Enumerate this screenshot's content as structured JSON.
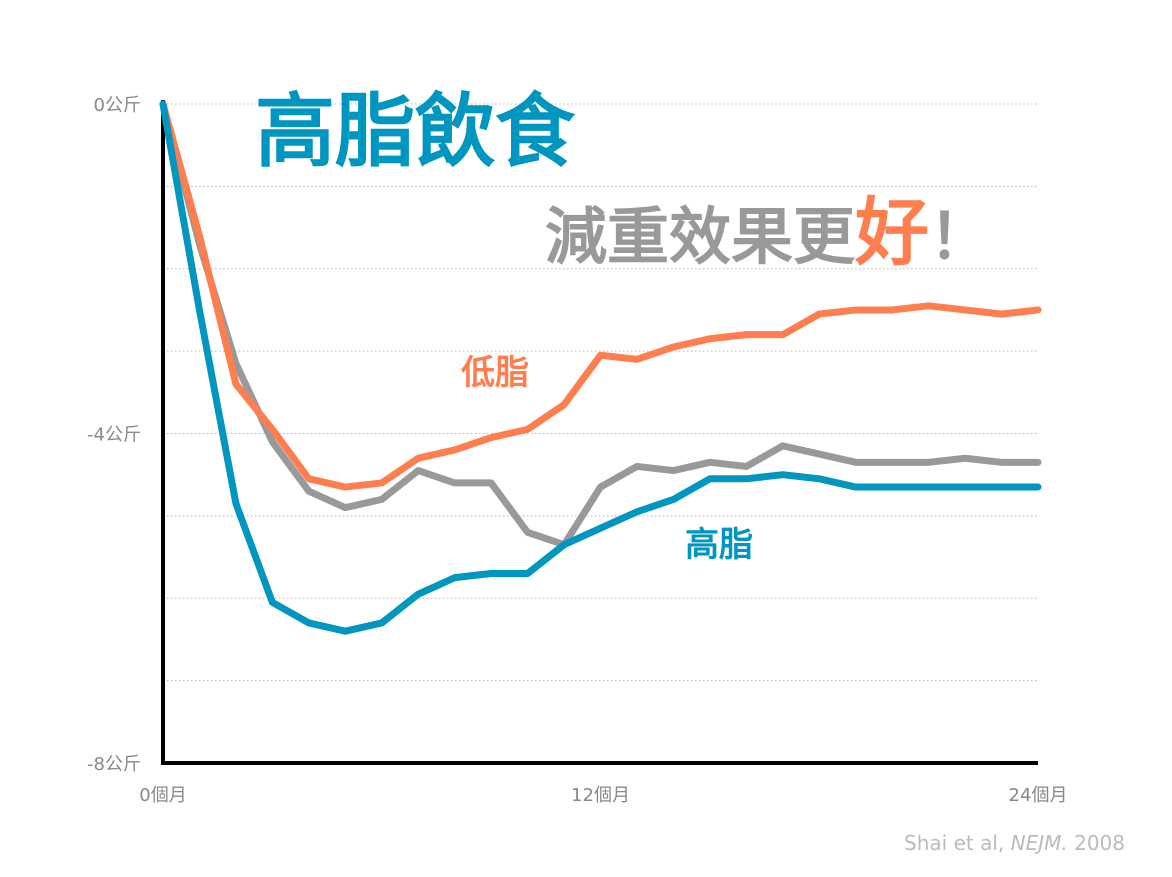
{
  "chart_data": {
    "type": "line",
    "yticks": [
      "0公斤",
      "-4公斤",
      "-8公斤"
    ],
    "ytick_values": [
      0,
      -4,
      -8
    ],
    "xticks": [
      "0個月",
      "12個月",
      "24個月"
    ],
    "xtick_values": [
      0,
      12,
      24
    ],
    "xlim": [
      0,
      24
    ],
    "ylim": [
      -8,
      0
    ],
    "grid": true,
    "series": [
      {
        "name": "低脂",
        "color": "#FF7E4F",
        "x": [
          0,
          1,
          2,
          3,
          4,
          5,
          6,
          7,
          8,
          9,
          10,
          11,
          12,
          13,
          14,
          15,
          16,
          17,
          18,
          19,
          20,
          21,
          22,
          23,
          24
        ],
        "values": [
          0,
          -1.6,
          -3.4,
          -3.95,
          -4.55,
          -4.65,
          -4.6,
          -4.3,
          -4.2,
          -4.05,
          -3.95,
          -3.65,
          -3.05,
          -3.1,
          -2.95,
          -2.85,
          -2.8,
          -2.8,
          -2.55,
          -2.5,
          -2.5,
          -2.45,
          -2.5,
          -2.55,
          -2.5
        ]
      },
      {
        "name": "",
        "color": "#999999",
        "x": [
          0,
          1,
          2,
          3,
          4,
          5,
          6,
          7,
          8,
          9,
          10,
          11,
          12,
          13,
          14,
          15,
          16,
          17,
          18,
          19,
          20,
          21,
          22,
          23,
          24
        ],
        "values": [
          0,
          -1.7,
          -3.15,
          -4.1,
          -4.7,
          -4.9,
          -4.8,
          -4.45,
          -4.6,
          -4.6,
          -5.2,
          -5.35,
          -4.65,
          -4.4,
          -4.45,
          -4.35,
          -4.4,
          -4.15,
          -4.25,
          -4.35,
          -4.35,
          -4.35,
          -4.3,
          -4.35,
          -4.35
        ]
      },
      {
        "name": "高脂",
        "color": "#0096BF",
        "x": [
          0,
          1,
          2,
          3,
          4,
          5,
          6,
          7,
          8,
          9,
          10,
          11,
          12,
          13,
          14,
          15,
          16,
          17,
          18,
          19,
          20,
          21,
          22,
          23,
          24
        ],
        "values": [
          0,
          -2.5,
          -4.85,
          -6.05,
          -6.3,
          -6.4,
          -6.3,
          -5.95,
          -5.75,
          -5.7,
          -5.7,
          -5.35,
          -5.15,
          -4.95,
          -4.8,
          -4.55,
          -4.55,
          -4.5,
          -4.55,
          -4.65,
          -4.65,
          -4.65,
          -4.65,
          -4.65,
          -4.65
        ]
      }
    ]
  },
  "headline": "高脂飲食",
  "headline_color": "#0096BF",
  "subtitle_main": "減重效果更",
  "subtitle_emph": "好",
  "subtitle_end": "！",
  "subtitle_color": "#999999",
  "emph_color": "#FF7E4F",
  "label_lowfat": "低脂",
  "label_highfat": "高脂",
  "source_prefix": "Shai et al, ",
  "source_journal": "NEJM.",
  "source_year": " 2008"
}
